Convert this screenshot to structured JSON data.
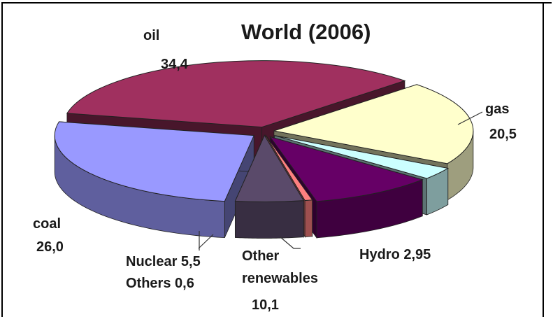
{
  "chart_data": {
    "type": "pie",
    "title": "World (2006)",
    "slices": [
      {
        "name": "oil",
        "value": 34.4,
        "value_label": "34,4",
        "color": "#a0305f"
      },
      {
        "name": "gas",
        "value": 20.5,
        "value_label": "20,5",
        "color": "#ffffcc"
      },
      {
        "name": "Hydro",
        "value": 2.95,
        "value_label": "2,95",
        "color": "#ccffff"
      },
      {
        "name": "Other renewables",
        "value": 10.1,
        "value_label": "10,1",
        "color": "#660066"
      },
      {
        "name": "Others",
        "value": 0.6,
        "value_label": "0,6",
        "color": "#ff8080"
      },
      {
        "name": "Nuclear",
        "value": 5.5,
        "value_label": "5,5",
        "color": "#5a4a6a"
      },
      {
        "name": "coal",
        "value": 26.0,
        "value_label": "26,0",
        "color": "#9999ff"
      }
    ],
    "labels": {
      "oil_name": "oil",
      "oil_value": "34,4",
      "gas_name": "gas",
      "gas_value": "20,5",
      "hydro": "Hydro 2,95",
      "other_renew_1": "Other",
      "other_renew_2": "renewables",
      "other_renew_value": "10,1",
      "nuclear": "Nuclear 5,5",
      "others": "Others 0,6",
      "coal_name": "coal",
      "coal_value": "26,0"
    }
  }
}
